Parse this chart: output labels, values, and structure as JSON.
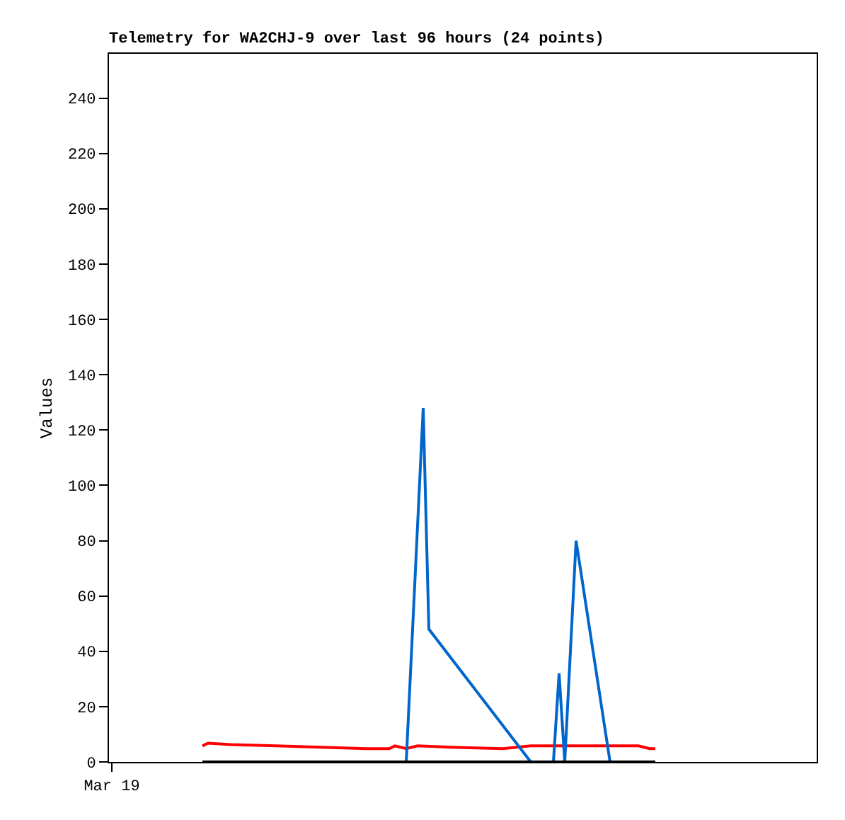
{
  "chart_data": {
    "type": "line",
    "title": "Telemetry for WA2CHJ-9 over last 96 hours (24 points)",
    "ylabel": "Values",
    "categories": [
      "Mar 19",
      null,
      null,
      null,
      null,
      null,
      null,
      null,
      null,
      null,
      null,
      null,
      null,
      null,
      null,
      null,
      null,
      null,
      null,
      null,
      null,
      null,
      null,
      null,
      null,
      null,
      null,
      null,
      null,
      null,
      null,
      null,
      null,
      null,
      null,
      null,
      null,
      null,
      null,
      null,
      null,
      null,
      null,
      null,
      null,
      null,
      null,
      null,
      null,
      null,
      null,
      null,
      null,
      null,
      null,
      null,
      null,
      null,
      null,
      null,
      null,
      null,
      null,
      null,
      null,
      null,
      null,
      null,
      null,
      null,
      null,
      null,
      null,
      null,
      null,
      null,
      null,
      null,
      null,
      null,
      null,
      null,
      null,
      null,
      null,
      null,
      null,
      null,
      null,
      null,
      null,
      null,
      null,
      null,
      null,
      null,
      null,
      null,
      null,
      null,
      null,
      null,
      null,
      null,
      null,
      null,
      null,
      null,
      null,
      null,
      null,
      null,
      null,
      null,
      null,
      null,
      null,
      null,
      null,
      null,
      null,
      null,
      null,
      null,
      null
    ],
    "ylim": [
      0,
      256
    ],
    "yticks": [
      0,
      20,
      40,
      60,
      80,
      100,
      120,
      140,
      160,
      180,
      200,
      220,
      240
    ],
    "marker": "none",
    "line_style": "solid",
    "series": [
      {
        "color": "#ff0000",
        "values": [
          null,
          null,
          null,
          null,
          null,
          null,
          null,
          null,
          null,
          null,
          null,
          null,
          null,
          null,
          null,
          null,
          5.8,
          6.8,
          null,
          null,
          null,
          6.3,
          null,
          null,
          null,
          null,
          null,
          null,
          null,
          5.8,
          null,
          null,
          null,
          null,
          null,
          null,
          null,
          5.3,
          null,
          null,
          null,
          null,
          null,
          null,
          null,
          4.8,
          null,
          null,
          null,
          4.8,
          5.8,
          null,
          4.8,
          null,
          5.8,
          null,
          null,
          null,
          null,
          null,
          5.3,
          null,
          null,
          null,
          null,
          null,
          null,
          null,
          null,
          4.8,
          null,
          null,
          null,
          null,
          5.8,
          null,
          null,
          null,
          null,
          null,
          null,
          null,
          null,
          null,
          null,
          null,
          null,
          null,
          null,
          null,
          null,
          null,
          null,
          5.8,
          null,
          4.8,
          4.8,
          null,
          null,
          null,
          null,
          null,
          null,
          null,
          null,
          null,
          null,
          null,
          null,
          null,
          null,
          null,
          null,
          null,
          null,
          null,
          null,
          null,
          null,
          null,
          null,
          null,
          null,
          null,
          null
        ]
      },
      {
        "color": "#0066cc",
        "values": [
          null,
          null,
          null,
          null,
          null,
          null,
          null,
          null,
          null,
          null,
          null,
          null,
          null,
          null,
          null,
          null,
          null,
          null,
          null,
          null,
          null,
          null,
          null,
          null,
          null,
          null,
          null,
          null,
          null,
          null,
          null,
          null,
          null,
          null,
          null,
          null,
          null,
          null,
          null,
          null,
          null,
          null,
          null,
          null,
          null,
          null,
          null,
          null,
          null,
          null,
          null,
          null,
          0,
          null,
          null,
          128,
          48,
          null,
          null,
          null,
          null,
          null,
          null,
          null,
          null,
          null,
          null,
          null,
          null,
          null,
          null,
          null,
          null,
          null,
          0,
          null,
          null,
          null,
          0,
          32,
          0,
          null,
          80,
          null,
          null,
          null,
          null,
          null,
          0,
          null,
          null,
          null,
          null,
          null,
          null,
          null,
          null,
          null,
          null,
          null,
          null,
          null,
          null,
          null,
          null,
          null,
          null,
          null,
          null,
          null,
          null,
          null,
          null,
          null,
          null,
          null,
          null,
          null,
          null,
          null,
          null,
          null,
          null,
          null,
          null
        ]
      },
      {
        "color": "#000000",
        "values": [
          null,
          null,
          null,
          null,
          null,
          null,
          null,
          null,
          null,
          null,
          null,
          null,
          null,
          null,
          null,
          null,
          0,
          null,
          null,
          null,
          null,
          null,
          null,
          null,
          null,
          null,
          null,
          null,
          null,
          null,
          null,
          null,
          null,
          null,
          null,
          null,
          null,
          null,
          null,
          null,
          null,
          null,
          null,
          null,
          null,
          null,
          null,
          null,
          null,
          null,
          null,
          null,
          null,
          null,
          null,
          null,
          null,
          null,
          null,
          null,
          null,
          null,
          null,
          null,
          null,
          null,
          null,
          null,
          null,
          null,
          null,
          null,
          null,
          null,
          null,
          null,
          null,
          null,
          null,
          null,
          null,
          null,
          null,
          null,
          null,
          null,
          null,
          null,
          null,
          null,
          null,
          null,
          null,
          null,
          null,
          null,
          0,
          null,
          null,
          null,
          null,
          null,
          null,
          null,
          null,
          null,
          null,
          null,
          null,
          null,
          null,
          null,
          null,
          null,
          null,
          null,
          null,
          null,
          null,
          null,
          null,
          null,
          null,
          null,
          null
        ]
      }
    ]
  }
}
